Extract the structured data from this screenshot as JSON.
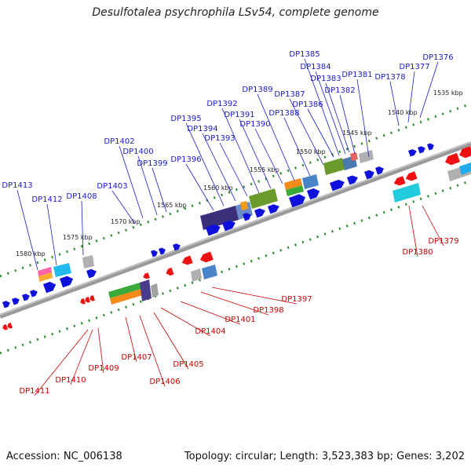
{
  "title": "Desulfotalea psychrophila LSv54, complete genome",
  "footer": {
    "accession": "Accession: NC_006138",
    "summary": "Topology: circular; Length: 3,523,383 bp; Genes: 3,202"
  },
  "colors": {
    "upper_labels": "#1a1acc",
    "lower_labels": "#cc0000",
    "forward_gene": "#1010dd",
    "reverse_gene": "#ee1111",
    "backbone": "#888888",
    "ruler_tick": "#2a8a2a"
  },
  "scale_labels": [
    "1535 kbp",
    "1540 kbp",
    "1545 kbp",
    "1550 kbp",
    "1555 kbp",
    "1560 kbp",
    "1565 kbp",
    "1570 kbp",
    "1575 kbp",
    "1580 kbp"
  ],
  "upper_genes": [
    "DP1376",
    "DP1377",
    "DP1378",
    "DP1381",
    "DP1382",
    "DP1383",
    "DP1384",
    "DP1385",
    "DP1386",
    "DP1387",
    "DP1388",
    "DP1389",
    "DP1390",
    "DP1391",
    "DP1392",
    "DP1393",
    "DP1394",
    "DP1395",
    "DP1396",
    "DP1399",
    "DP1400",
    "DP1402",
    "DP1403",
    "DP1408",
    "DP1412",
    "DP1413"
  ],
  "lower_genes": [
    "DP1379",
    "DP1380",
    "DP1397",
    "DP1398",
    "DP1401",
    "DP1404",
    "DP1405",
    "DP1406",
    "DP1407",
    "DP1409",
    "DP1410",
    "DP1411"
  ]
}
